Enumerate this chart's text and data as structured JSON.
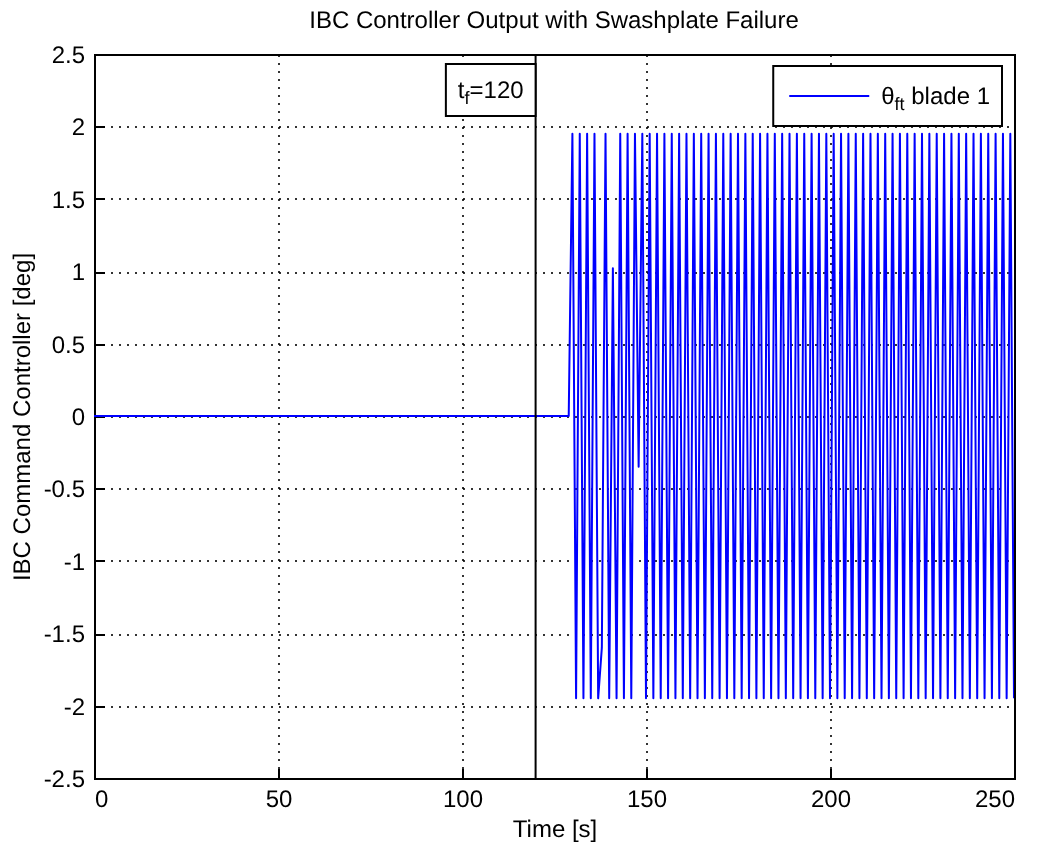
{
  "chart_data": {
    "type": "line",
    "title": "IBC Controller Output with Swashplate Failure",
    "xlabel": "Time [s]",
    "ylabel": "IBC Command Controller [deg]",
    "xlim": [
      0,
      250
    ],
    "xticks": [
      0,
      50,
      100,
      150,
      200,
      250
    ],
    "ylim": [
      -2.5,
      2.5
    ],
    "yticks": [
      -2.5,
      -2,
      -1.5,
      -1,
      -0.5,
      0,
      0.5,
      1,
      1.5,
      2,
      2.5
    ],
    "grid": true,
    "legend": "top right",
    "ref_lines": [
      {
        "axis": "x",
        "value": 120,
        "label": "t$_{f}$=120",
        "color": "#000000"
      }
    ],
    "series": [
      {
        "name": "θ$_{ft}$ blade 1",
        "color": "#0000ff",
        "x": [
          0,
          129,
          130,
          131,
          132,
          133,
          134,
          135,
          136,
          137,
          138,
          139,
          140,
          141,
          142,
          143,
          144,
          145,
          146,
          147,
          148,
          149,
          150,
          151,
          152,
          153,
          154,
          155,
          156,
          157,
          158,
          159,
          160,
          161,
          162,
          163,
          164,
          165,
          166,
          167,
          168,
          169,
          170,
          171,
          172,
          173,
          174,
          175,
          176,
          177,
          178,
          179,
          180,
          181,
          182,
          183,
          184,
          185,
          186,
          187,
          188,
          189,
          190,
          191,
          192,
          193,
          194,
          195,
          196,
          197,
          198,
          199,
          200,
          201,
          202,
          203,
          204,
          205,
          206,
          207,
          208,
          209,
          210,
          211,
          212,
          213,
          214,
          215,
          216,
          217,
          218,
          219,
          220,
          221,
          222,
          223,
          224,
          225,
          226,
          227,
          228,
          229,
          230,
          231,
          232,
          233,
          234,
          235,
          236,
          237,
          238,
          239,
          240,
          241,
          242,
          243,
          244,
          245,
          246,
          247,
          248,
          249,
          250
        ],
        "values": [
          0,
          0,
          1.95,
          -1.95,
          1.95,
          -1.95,
          1.95,
          -1.95,
          1.95,
          -1.95,
          -1.6,
          1.95,
          -1.95,
          1.02,
          -1.95,
          1.95,
          -1.95,
          1.95,
          -1.95,
          1.95,
          -0.35,
          1.95,
          -1.95,
          1.95,
          -1.95,
          1.95,
          -1.95,
          1.95,
          -1.95,
          1.95,
          -1.95,
          1.95,
          -1.95,
          1.95,
          -1.95,
          1.95,
          -1.95,
          1.95,
          -1.95,
          1.95,
          -1.95,
          1.95,
          -1.95,
          1.95,
          -1.95,
          1.95,
          -1.95,
          1.95,
          -1.95,
          1.95,
          -1.95,
          1.95,
          -1.95,
          1.95,
          -1.95,
          1.95,
          -1.95,
          1.95,
          -1.95,
          1.95,
          -1.95,
          1.95,
          -1.95,
          1.95,
          -1.95,
          1.95,
          -1.95,
          1.95,
          -1.95,
          1.95,
          -1.95,
          1.95,
          -1.95,
          1.95,
          -1.95,
          1.95,
          -1.95,
          1.95,
          -1.95,
          1.95,
          -1.95,
          1.95,
          -1.95,
          1.95,
          -1.95,
          1.95,
          -1.95,
          1.95,
          -1.95,
          1.95,
          -1.95,
          1.95,
          -1.95,
          1.95,
          -1.95,
          1.95,
          -1.95,
          1.95,
          -1.95,
          1.95,
          -1.95,
          1.95,
          -1.95,
          1.95,
          -1.95,
          1.95,
          -1.95,
          1.95,
          -1.95,
          1.95,
          -1.95,
          1.95,
          -1.95,
          1.95,
          -1.95,
          1.95,
          -1.95,
          1.95,
          -1.95,
          1.95,
          -1.95,
          1.95,
          -1.95
        ]
      }
    ]
  }
}
